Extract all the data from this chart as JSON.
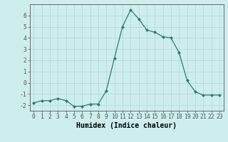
{
  "x": [
    0,
    1,
    2,
    3,
    4,
    5,
    6,
    7,
    8,
    9,
    10,
    11,
    12,
    13,
    14,
    15,
    16,
    17,
    18,
    19,
    20,
    21,
    22,
    23
  ],
  "y": [
    -1.8,
    -1.6,
    -1.6,
    -1.4,
    -1.6,
    -2.1,
    -2.1,
    -1.9,
    -1.9,
    -0.7,
    2.2,
    5.0,
    6.5,
    5.7,
    4.7,
    4.5,
    4.1,
    4.0,
    2.7,
    0.2,
    -0.8,
    -1.1,
    -1.1,
    -1.1
  ],
  "xlabel": "Humidex (Indice chaleur)",
  "ylim": [
    -2.5,
    7.0
  ],
  "xlim": [
    -0.5,
    23.5
  ],
  "yticks": [
    -2,
    -1,
    0,
    1,
    2,
    3,
    4,
    5,
    6
  ],
  "xticks": [
    0,
    1,
    2,
    3,
    4,
    5,
    6,
    7,
    8,
    9,
    10,
    11,
    12,
    13,
    14,
    15,
    16,
    17,
    18,
    19,
    20,
    21,
    22,
    23
  ],
  "line_color": "#2d7d6e",
  "marker_color": "#2d7d6e",
  "bg_color": "#cdeeed",
  "grid_color": "#aed8d5",
  "axis_color": "#555555",
  "xlabel_fontsize": 7,
  "tick_fontsize": 5.8
}
